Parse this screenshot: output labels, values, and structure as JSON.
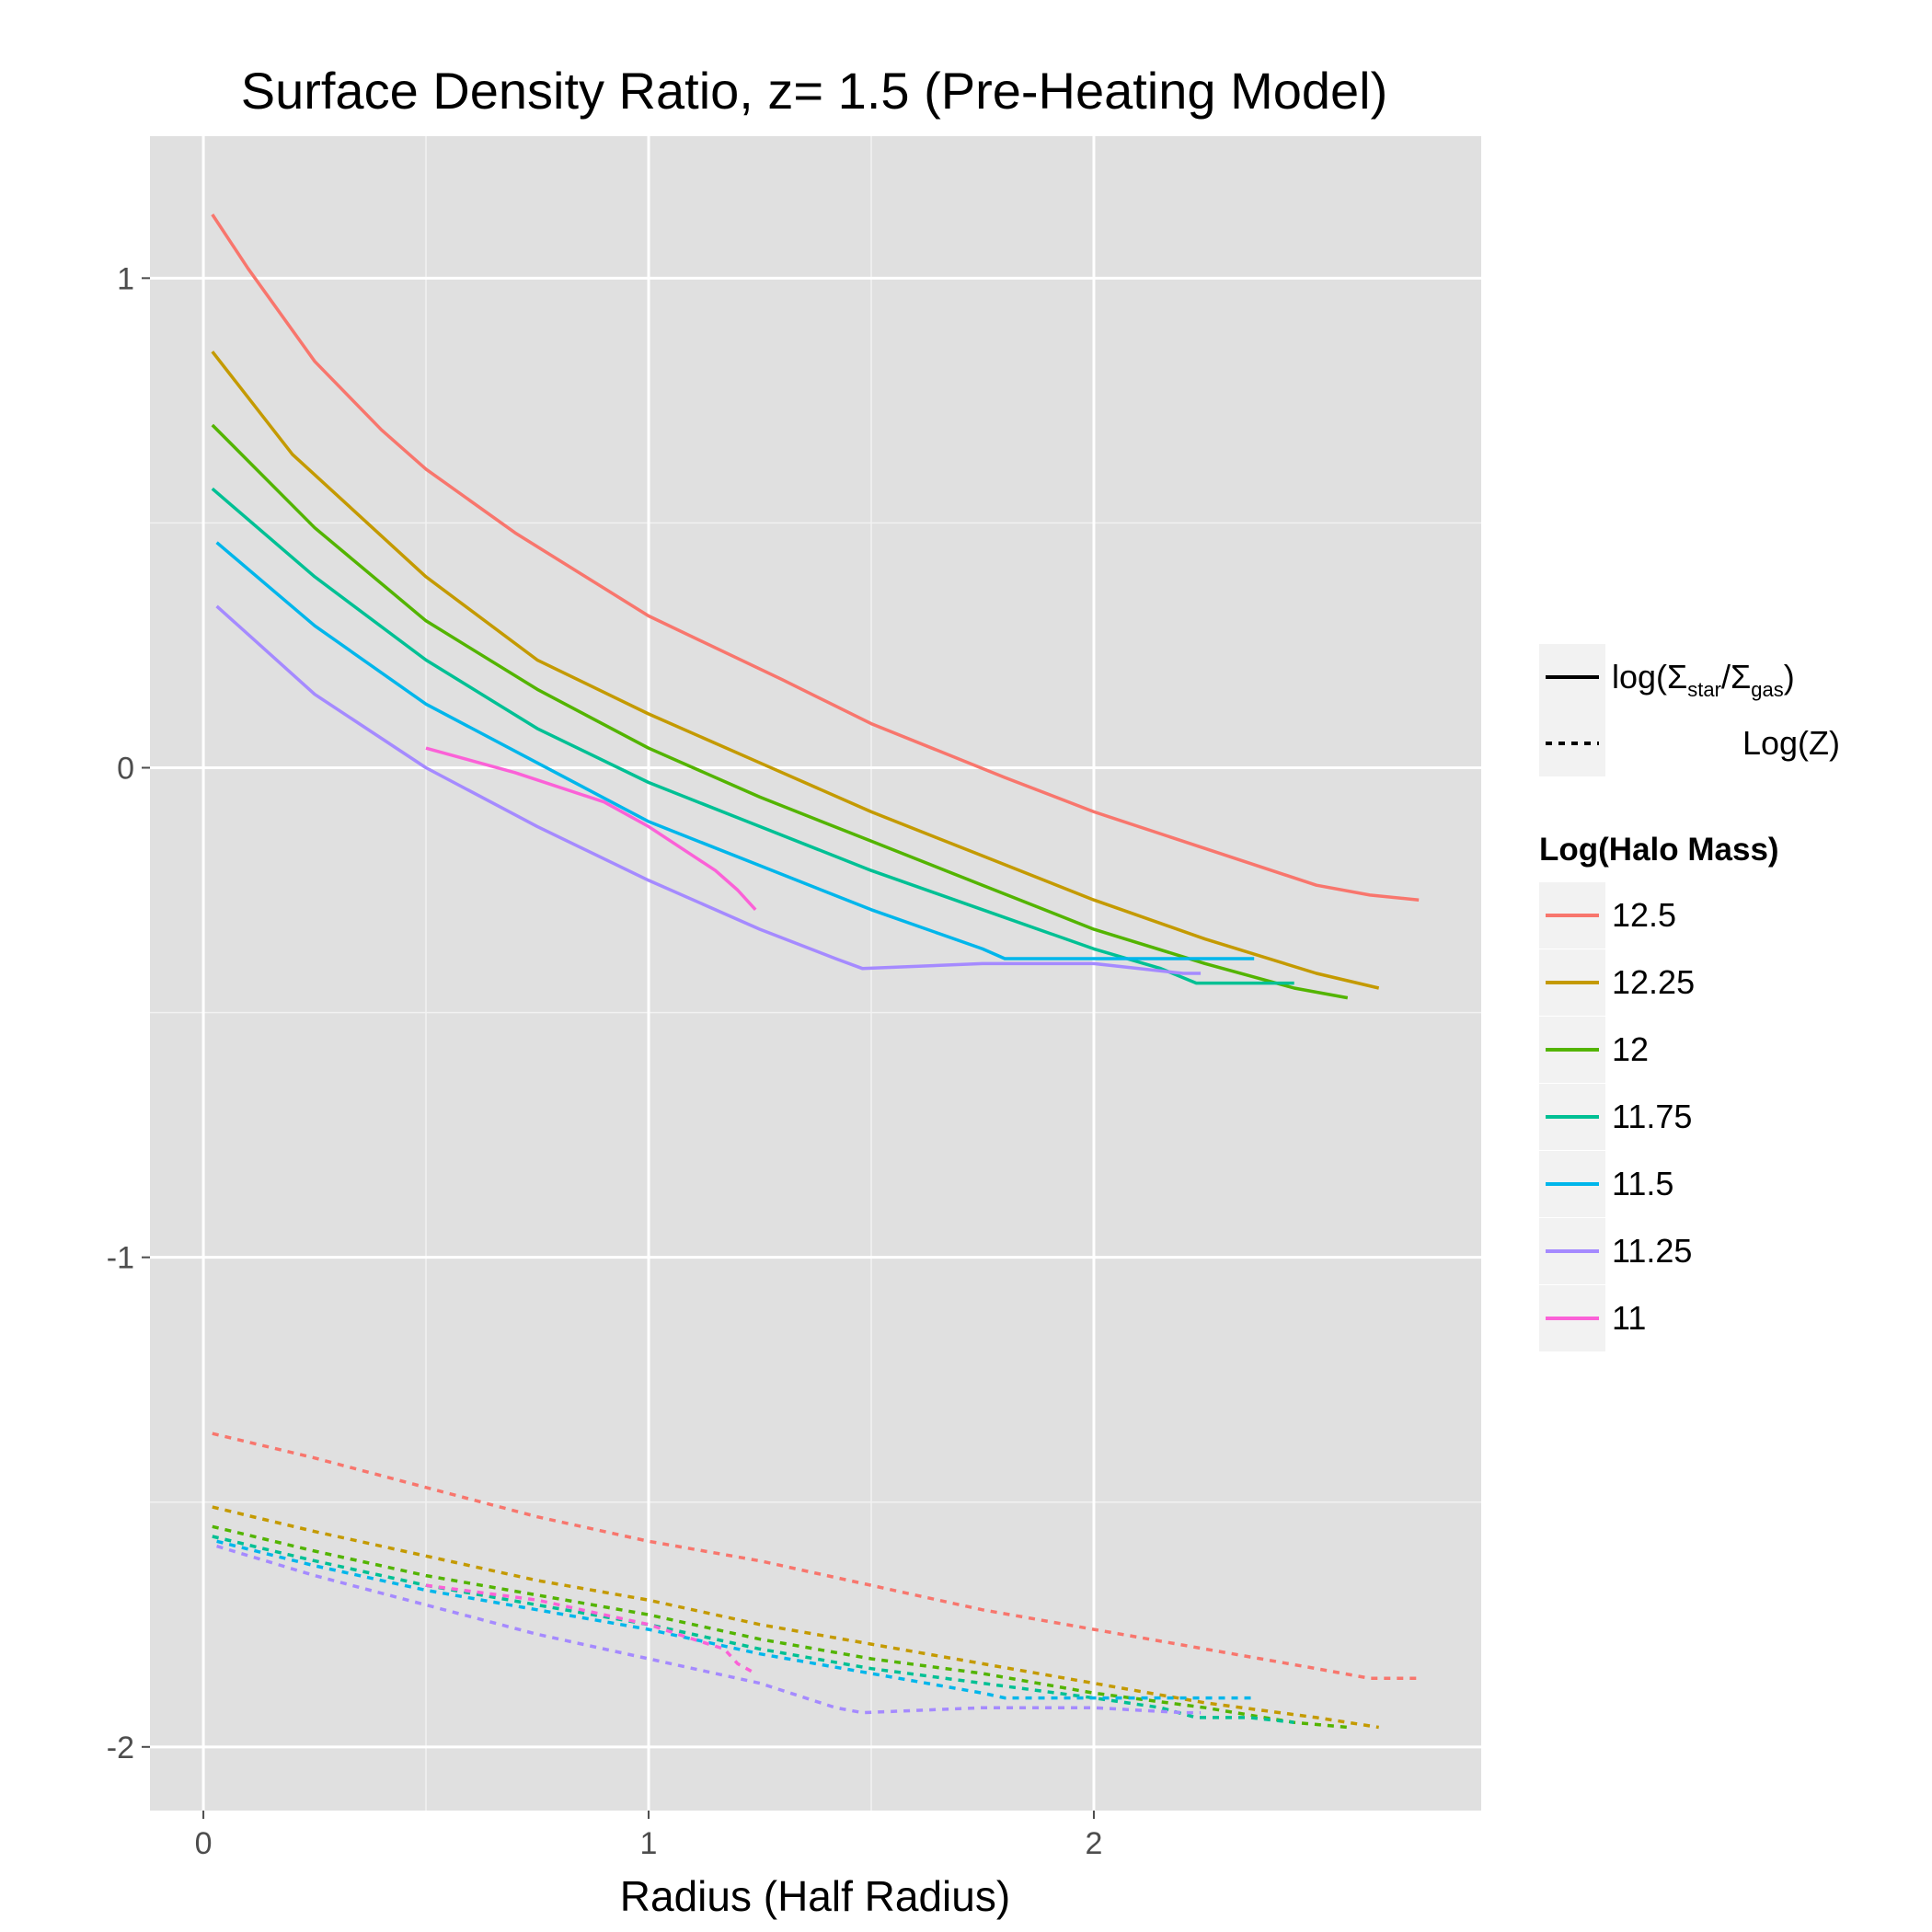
{
  "chart_data": {
    "type": "line",
    "title": "Surface Density Ratio, z= 1.5 (Pre-Heating Model)",
    "xlabel": "Radius (Half Radius)",
    "ylabel": "",
    "xlim": [
      -0.12,
      2.87
    ],
    "ylim": [
      -2.13,
      1.29
    ],
    "xticks": [
      0,
      1,
      2
    ],
    "xtick_labels": [
      "0",
      "1",
      "2"
    ],
    "yticks": [
      -2,
      -1,
      0,
      1
    ],
    "ytick_labels": [
      "-2",
      "-1",
      "0",
      "1"
    ],
    "grid": true,
    "background": "#e0e0e0",
    "legend_position": "right",
    "linetype_legend": [
      {
        "style": "solid",
        "label_main": "log(Σ",
        "label_sub1": "star",
        "label_mid": "/Σ",
        "label_sub2": "gas",
        "label_end": ")"
      },
      {
        "style": "dashed",
        "label": "Log(Z)"
      }
    ],
    "color_legend_title": "Log(Halo Mass)",
    "series": [
      {
        "name": "12.5",
        "color": "#f8766d",
        "ratio": [
          [
            0.02,
            1.13
          ],
          [
            0.1,
            1.02
          ],
          [
            0.25,
            0.83
          ],
          [
            0.4,
            0.69
          ],
          [
            0.5,
            0.61
          ],
          [
            0.7,
            0.48
          ],
          [
            1.0,
            0.31
          ],
          [
            1.3,
            0.18
          ],
          [
            1.5,
            0.09
          ],
          [
            1.8,
            -0.02
          ],
          [
            2.0,
            -0.09
          ],
          [
            2.3,
            -0.18
          ],
          [
            2.5,
            -0.24
          ],
          [
            2.62,
            -0.26
          ],
          [
            2.73,
            -0.27
          ]
        ],
        "metallicity": [
          [
            0.02,
            -1.36
          ],
          [
            0.25,
            -1.41
          ],
          [
            0.5,
            -1.47
          ],
          [
            0.75,
            -1.53
          ],
          [
            1.0,
            -1.58
          ],
          [
            1.25,
            -1.62
          ],
          [
            1.5,
            -1.67
          ],
          [
            1.75,
            -1.72
          ],
          [
            2.0,
            -1.76
          ],
          [
            2.25,
            -1.8
          ],
          [
            2.5,
            -1.84
          ],
          [
            2.62,
            -1.86
          ],
          [
            2.73,
            -1.86
          ]
        ]
      },
      {
        "name": "12.25",
        "color": "#c49a00",
        "ratio": [
          [
            0.02,
            0.85
          ],
          [
            0.2,
            0.64
          ],
          [
            0.5,
            0.39
          ],
          [
            0.75,
            0.22
          ],
          [
            1.0,
            0.11
          ],
          [
            1.25,
            0.01
          ],
          [
            1.5,
            -0.09
          ],
          [
            1.75,
            -0.18
          ],
          [
            2.0,
            -0.27
          ],
          [
            2.25,
            -0.35
          ],
          [
            2.5,
            -0.42
          ],
          [
            2.64,
            -0.45
          ]
        ],
        "metallicity": [
          [
            0.02,
            -1.51
          ],
          [
            0.25,
            -1.56
          ],
          [
            0.5,
            -1.61
          ],
          [
            0.75,
            -1.66
          ],
          [
            1.0,
            -1.7
          ],
          [
            1.25,
            -1.75
          ],
          [
            1.5,
            -1.79
          ],
          [
            1.75,
            -1.83
          ],
          [
            2.0,
            -1.87
          ],
          [
            2.25,
            -1.91
          ],
          [
            2.5,
            -1.94
          ],
          [
            2.64,
            -1.96
          ]
        ]
      },
      {
        "name": "12",
        "color": "#53b400",
        "ratio": [
          [
            0.02,
            0.7
          ],
          [
            0.25,
            0.49
          ],
          [
            0.5,
            0.3
          ],
          [
            0.75,
            0.16
          ],
          [
            1.0,
            0.04
          ],
          [
            1.25,
            -0.06
          ],
          [
            1.5,
            -0.15
          ],
          [
            1.75,
            -0.24
          ],
          [
            2.0,
            -0.33
          ],
          [
            2.25,
            -0.4
          ],
          [
            2.45,
            -0.45
          ],
          [
            2.57,
            -0.47
          ]
        ],
        "metallicity": [
          [
            0.02,
            -1.55
          ],
          [
            0.25,
            -1.6
          ],
          [
            0.5,
            -1.65
          ],
          [
            0.75,
            -1.69
          ],
          [
            1.0,
            -1.73
          ],
          [
            1.25,
            -1.78
          ],
          [
            1.5,
            -1.82
          ],
          [
            1.75,
            -1.85
          ],
          [
            2.0,
            -1.89
          ],
          [
            2.25,
            -1.92
          ],
          [
            2.45,
            -1.95
          ],
          [
            2.57,
            -1.96
          ]
        ]
      },
      {
        "name": "11.75",
        "color": "#00c094",
        "ratio": [
          [
            0.02,
            0.57
          ],
          [
            0.25,
            0.39
          ],
          [
            0.5,
            0.22
          ],
          [
            0.75,
            0.08
          ],
          [
            1.0,
            -0.03
          ],
          [
            1.25,
            -0.12
          ],
          [
            1.5,
            -0.21
          ],
          [
            1.75,
            -0.29
          ],
          [
            2.0,
            -0.37
          ],
          [
            2.15,
            -0.41
          ],
          [
            2.23,
            -0.44
          ],
          [
            2.35,
            -0.44
          ],
          [
            2.45,
            -0.44
          ]
        ],
        "metallicity": [
          [
            0.02,
            -1.57
          ],
          [
            0.25,
            -1.62
          ],
          [
            0.5,
            -1.67
          ],
          [
            0.75,
            -1.71
          ],
          [
            1.0,
            -1.75
          ],
          [
            1.25,
            -1.8
          ],
          [
            1.5,
            -1.84
          ],
          [
            1.75,
            -1.87
          ],
          [
            2.0,
            -1.9
          ],
          [
            2.15,
            -1.92
          ],
          [
            2.23,
            -1.94
          ],
          [
            2.35,
            -1.94
          ],
          [
            2.45,
            -1.95
          ]
        ]
      },
      {
        "name": "11.5",
        "color": "#00b6eb",
        "ratio": [
          [
            0.03,
            0.46
          ],
          [
            0.25,
            0.29
          ],
          [
            0.5,
            0.13
          ],
          [
            0.75,
            0.01
          ],
          [
            1.0,
            -0.11
          ],
          [
            1.25,
            -0.2
          ],
          [
            1.5,
            -0.29
          ],
          [
            1.75,
            -0.37
          ],
          [
            1.8,
            -0.39
          ],
          [
            2.0,
            -0.39
          ],
          [
            2.25,
            -0.39
          ],
          [
            2.36,
            -0.39
          ]
        ],
        "metallicity": [
          [
            0.03,
            -1.58
          ],
          [
            0.25,
            -1.63
          ],
          [
            0.5,
            -1.68
          ],
          [
            0.75,
            -1.72
          ],
          [
            1.0,
            -1.76
          ],
          [
            1.25,
            -1.81
          ],
          [
            1.5,
            -1.85
          ],
          [
            1.75,
            -1.89
          ],
          [
            1.8,
            -1.9
          ],
          [
            2.0,
            -1.9
          ],
          [
            2.25,
            -1.9
          ],
          [
            2.36,
            -1.9
          ]
        ]
      },
      {
        "name": "11.25",
        "color": "#a58aff",
        "ratio": [
          [
            0.03,
            0.33
          ],
          [
            0.25,
            0.15
          ],
          [
            0.5,
            0.0
          ],
          [
            0.75,
            -0.12
          ],
          [
            1.0,
            -0.23
          ],
          [
            1.25,
            -0.33
          ],
          [
            1.42,
            -0.39
          ],
          [
            1.48,
            -0.41
          ],
          [
            1.75,
            -0.4
          ],
          [
            2.0,
            -0.4
          ],
          [
            2.2,
            -0.42
          ],
          [
            2.24,
            -0.42
          ]
        ],
        "metallicity": [
          [
            0.03,
            -1.59
          ],
          [
            0.25,
            -1.65
          ],
          [
            0.5,
            -1.71
          ],
          [
            0.75,
            -1.77
          ],
          [
            1.0,
            -1.82
          ],
          [
            1.25,
            -1.87
          ],
          [
            1.42,
            -1.92
          ],
          [
            1.48,
            -1.93
          ],
          [
            1.75,
            -1.92
          ],
          [
            2.0,
            -1.92
          ],
          [
            2.2,
            -1.93
          ],
          [
            2.24,
            -1.93
          ]
        ]
      },
      {
        "name": "11",
        "color": "#fb61d7",
        "ratio": [
          [
            0.5,
            0.04
          ],
          [
            0.7,
            -0.01
          ],
          [
            0.9,
            -0.07
          ],
          [
            1.0,
            -0.12
          ],
          [
            1.1,
            -0.18
          ],
          [
            1.15,
            -0.21
          ],
          [
            1.2,
            -0.25
          ],
          [
            1.24,
            -0.29
          ]
        ],
        "metallicity": [
          [
            0.5,
            -1.67
          ],
          [
            0.75,
            -1.7
          ],
          [
            1.0,
            -1.75
          ],
          [
            1.1,
            -1.78
          ],
          [
            1.17,
            -1.8
          ],
          [
            1.2,
            -1.83
          ],
          [
            1.24,
            -1.85
          ]
        ]
      }
    ]
  }
}
